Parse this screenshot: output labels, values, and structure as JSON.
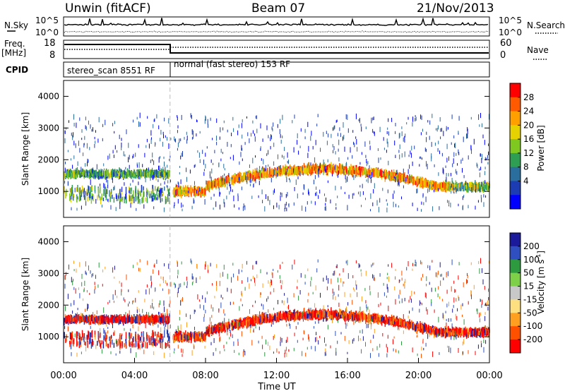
{
  "header": {
    "radar": "Unwin (fitACF)",
    "beam": "Beam 07",
    "date": "21/Nov/2013"
  },
  "top_panels": {
    "nsky_label": "N.Sky",
    "nsearch_label": "N.Search",
    "freq_label_line1": "Freq.",
    "freq_label_line2": "[MHz]",
    "nave_label": "Nave",
    "cpid_label": "CPID",
    "noise_ticks_left": [
      "10^5",
      "10^0"
    ],
    "noise_ticks_right": [
      "10^5",
      "10^0"
    ],
    "freq_ticks": [
      "18",
      "8"
    ],
    "nave_ticks": [
      "60",
      "0"
    ],
    "cpid_segments": [
      {
        "label": "stereo_scan 8551 RF",
        "start_hour": 0,
        "end_hour": 6
      },
      {
        "label": "normal (fast stereo) 153 RF",
        "start_hour": 6,
        "end_hour": 24
      }
    ]
  },
  "chart_data": [
    {
      "type": "heatmap",
      "name": "power",
      "ylabel": "Slant Range [km]",
      "yticks": [
        "4000",
        "3000",
        "2000",
        "1000"
      ],
      "ylim": [
        180,
        4500
      ],
      "colorbar_label": "Power [dB]",
      "colorbar_ticks": [
        "28",
        "24",
        "20",
        "16",
        "12",
        "8",
        "4"
      ],
      "colorbar_colors": [
        "#ff0000",
        "#ff5a00",
        "#ffa000",
        "#e6d200",
        "#7ec820",
        "#2e9e52",
        "#2a6e9e",
        "#1c3cb4",
        "#0000ff"
      ],
      "xticks": [
        "00:00",
        "04:00",
        "08:00",
        "12:00",
        "16:00",
        "20:00",
        "00:00"
      ],
      "xlim_hours": [
        0,
        24
      ]
    },
    {
      "type": "heatmap",
      "name": "velocity",
      "ylabel": "Slant Range [km]",
      "yticks": [
        "4000",
        "3000",
        "2000",
        "1000"
      ],
      "ylim": [
        180,
        4500
      ],
      "colorbar_label": "Velocity [m s",
      "colorbar_label_sup": "-1",
      "colorbar_label_end": "]",
      "colorbar_ticks": [
        "200",
        "100",
        "50",
        "15",
        "-15",
        "-50",
        "-100",
        "-200"
      ],
      "colorbar_colors": [
        "#1a1a9a",
        "#2f4fc0",
        "#2e9a40",
        "#7ed048",
        "#c8c8c8",
        "#ffe080",
        "#ffa020",
        "#ff5000",
        "#ff0000"
      ],
      "xticks": [
        "00:00",
        "04:00",
        "08:00",
        "12:00",
        "16:00",
        "20:00",
        "00:00"
      ],
      "xlim_hours": [
        0,
        24
      ],
      "xlabel": "Time UT"
    }
  ]
}
